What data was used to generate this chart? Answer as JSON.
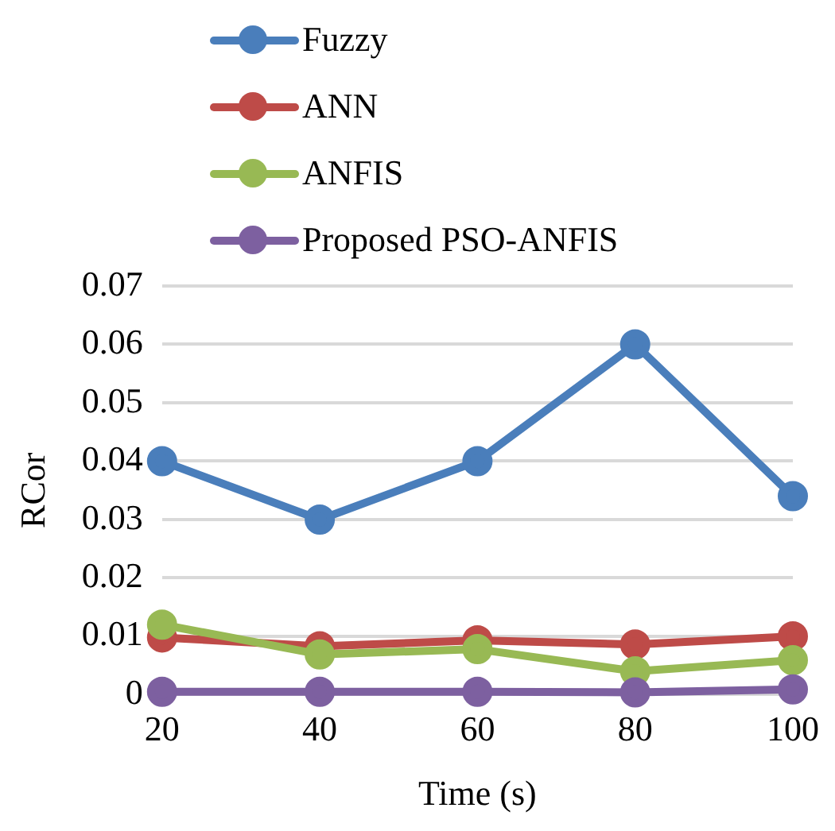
{
  "chart_data": {
    "type": "line",
    "xlabel": "Time (s)",
    "ylabel": "RCor",
    "categories": [
      "20",
      "40",
      "60",
      "80",
      "100"
    ],
    "series": [
      {
        "name": "Fuzzy",
        "color": "#4a7ebb",
        "values": [
          0.04,
          0.03,
          0.04,
          0.06,
          0.034
        ]
      },
      {
        "name": "ANN",
        "color": "#be4b48",
        "values": [
          0.0098,
          0.0083,
          0.0093,
          0.0086,
          0.01
        ]
      },
      {
        "name": "ANFIS",
        "color": "#98b954",
        "values": [
          0.012,
          0.0069,
          0.0078,
          0.004,
          0.0059
        ]
      },
      {
        "name": "Proposed PSO-ANFIS",
        "color": "#7d60a0",
        "values": [
          0.0005,
          0.0005,
          0.0005,
          0.0004,
          0.0009
        ]
      }
    ],
    "ylim": [
      0,
      0.07
    ],
    "yticks": [
      0,
      0.01,
      0.02,
      0.03,
      0.04,
      0.05,
      0.06,
      0.07
    ],
    "grid": "y",
    "legend": "top",
    "marker": "circle",
    "line_style": "solid"
  }
}
